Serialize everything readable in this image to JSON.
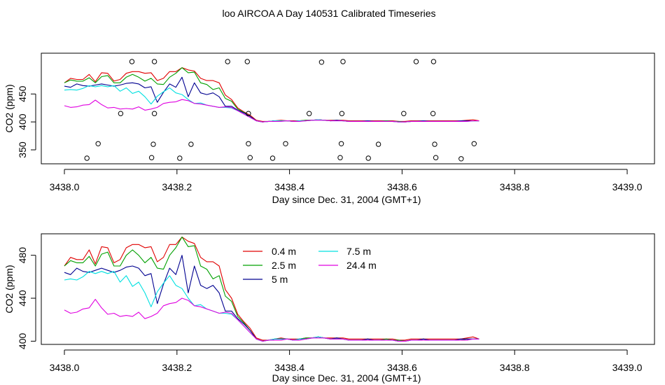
{
  "title": "loo AIRCOA A  Day 140531  Calibrated Timeseries",
  "colors": {
    "h04": "#e00000",
    "h25": "#00a000",
    "h5": "#000090",
    "h75": "#00e0e0",
    "h244": "#e000e0",
    "axis": "#000000"
  },
  "chart_data": [
    {
      "type": "line",
      "xlabel": "Day since Dec. 31, 2004 (GMT+1)",
      "ylabel": "CO2 (ppm)",
      "xlim": [
        3438.0,
        3439.0
      ],
      "ylim": [
        325,
        523
      ],
      "xticks": [
        3438.0,
        3438.2,
        3438.4,
        3438.6,
        3438.8,
        3439.0
      ],
      "xtick_labels": [
        "3438.0",
        "3438.2",
        "3438.4",
        "3438.6",
        "3438.8",
        "3439.0"
      ],
      "yticks": [
        350,
        400,
        450
      ],
      "ytick_labels": [
        "350",
        "400",
        "450"
      ],
      "legend": "none",
      "series_key": "shared",
      "markers": {
        "name": "",
        "style": "open-circle",
        "points": [
          [
            3438.04,
            335
          ],
          [
            3438.06,
            361
          ],
          [
            3438.1,
            415
          ],
          [
            3438.12,
            508
          ],
          [
            3438.155,
            336
          ],
          [
            3438.158,
            360
          ],
          [
            3438.16,
            415
          ],
          [
            3438.16,
            508
          ],
          [
            3438.205,
            335
          ],
          [
            3438.225,
            360
          ],
          [
            3438.29,
            508
          ],
          [
            3438.325,
            508
          ],
          [
            3438.327,
            415
          ],
          [
            3438.327,
            361
          ],
          [
            3438.33,
            336
          ],
          [
            3438.37,
            335
          ],
          [
            3438.393,
            361
          ],
          [
            3438.435,
            415
          ],
          [
            3438.457,
            507
          ],
          [
            3438.49,
            336
          ],
          [
            3438.492,
            361
          ],
          [
            3438.493,
            415
          ],
          [
            3438.495,
            508
          ],
          [
            3438.54,
            335
          ],
          [
            3438.558,
            360
          ],
          [
            3438.603,
            415
          ],
          [
            3438.625,
            508
          ],
          [
            3438.655,
            415
          ],
          [
            3438.656,
            508
          ],
          [
            3438.658,
            360
          ],
          [
            3438.66,
            336
          ],
          [
            3438.705,
            334
          ],
          [
            3438.728,
            361
          ]
        ]
      }
    },
    {
      "type": "line",
      "xlabel": "Day since Dec. 31, 2004 (GMT+1)",
      "ylabel": "CO2 (ppm)",
      "xlim": [
        3438.0,
        3439.0
      ],
      "ylim": [
        397,
        500
      ],
      "xticks": [
        3438.0,
        3438.2,
        3438.4,
        3438.6,
        3438.8,
        3439.0
      ],
      "xtick_labels": [
        "3438.0",
        "3438.2",
        "3438.4",
        "3438.6",
        "3438.8",
        "3439.0"
      ],
      "yticks": [
        400,
        440,
        480
      ],
      "ytick_labels": [
        "400",
        "440",
        "480"
      ],
      "legend": "top-center",
      "series": [
        {
          "name": "0.4 m",
          "color_key": "h04",
          "values": [
            470,
            478,
            476,
            476,
            485,
            472,
            488,
            487,
            473,
            476,
            487,
            490,
            490,
            487,
            488,
            474,
            478,
            490,
            490,
            497,
            493,
            491,
            478,
            474,
            474,
            470,
            448,
            440,
            425,
            418,
            412,
            403,
            401,
            401,
            402,
            403,
            402,
            402,
            402,
            403,
            403,
            404,
            403,
            403,
            403,
            403,
            402,
            402,
            402,
            402,
            402,
            402,
            402,
            402,
            401,
            401,
            402,
            402,
            402,
            402,
            402,
            402,
            402,
            402,
            402,
            403,
            404,
            402
          ]
        },
        {
          "name": "2.5 m",
          "color_key": "h25",
          "values": [
            470,
            475,
            473,
            473,
            479,
            470,
            481,
            483,
            470,
            470,
            480,
            485,
            480,
            473,
            478,
            468,
            467,
            480,
            487,
            497,
            488,
            489,
            470,
            467,
            458,
            461,
            442,
            437,
            423,
            417,
            410,
            402,
            400,
            401,
            402,
            402,
            402,
            401,
            402,
            403,
            403,
            404,
            403,
            402,
            403,
            402,
            401,
            401,
            401,
            402,
            401,
            401,
            402,
            401,
            401,
            400,
            401,
            401,
            402,
            401,
            401,
            401,
            401,
            401,
            401,
            402,
            402,
            402
          ]
        },
        {
          "name": "5 m",
          "color_key": "h5",
          "values": [
            464,
            462,
            468,
            465,
            464,
            466,
            468,
            466,
            464,
            466,
            469,
            470,
            468,
            461,
            463,
            435,
            453,
            468,
            462,
            480,
            445,
            470,
            452,
            449,
            452,
            445,
            428,
            428,
            421,
            416,
            410,
            402,
            400,
            401,
            402,
            402,
            402,
            401,
            402,
            402,
            403,
            404,
            403,
            402,
            403,
            402,
            401,
            401,
            401,
            402,
            401,
            401,
            401,
            401,
            400,
            400,
            401,
            401,
            402,
            401,
            401,
            401,
            401,
            401,
            402,
            402,
            402,
            402
          ]
        },
        {
          "name": "7.5 m",
          "color_key": "h75",
          "values": [
            457,
            458,
            457,
            460,
            465,
            463,
            465,
            463,
            465,
            455,
            461,
            451,
            455,
            445,
            432,
            446,
            454,
            461,
            452,
            449,
            440,
            433,
            434,
            430,
            428,
            426,
            426,
            425,
            420,
            414,
            408,
            402,
            400,
            401,
            402,
            402,
            402,
            401,
            402,
            402,
            403,
            404,
            403,
            402,
            402,
            402,
            401,
            401,
            401,
            401,
            401,
            401,
            401,
            401,
            400,
            400,
            401,
            401,
            401,
            401,
            401,
            401,
            401,
            401,
            401,
            401,
            402,
            402
          ]
        },
        {
          "name": "24.4 m",
          "color_key": "h244",
          "values": [
            429,
            426,
            427,
            430,
            431,
            439,
            431,
            425,
            426,
            423,
            424,
            423,
            427,
            421,
            423,
            426,
            433,
            435,
            436,
            440,
            438,
            433,
            432,
            430,
            428,
            426,
            427,
            426,
            420,
            414,
            408,
            402,
            400,
            401,
            401,
            401,
            402,
            401,
            401,
            402,
            403,
            403,
            403,
            402,
            402,
            402,
            401,
            401,
            401,
            401,
            401,
            401,
            401,
            401,
            400,
            400,
            401,
            401,
            401,
            401,
            401,
            401,
            401,
            401,
            401,
            401,
            402,
            402
          ]
        }
      ],
      "x_start": 3438.0,
      "x_step": 0.011
    }
  ]
}
